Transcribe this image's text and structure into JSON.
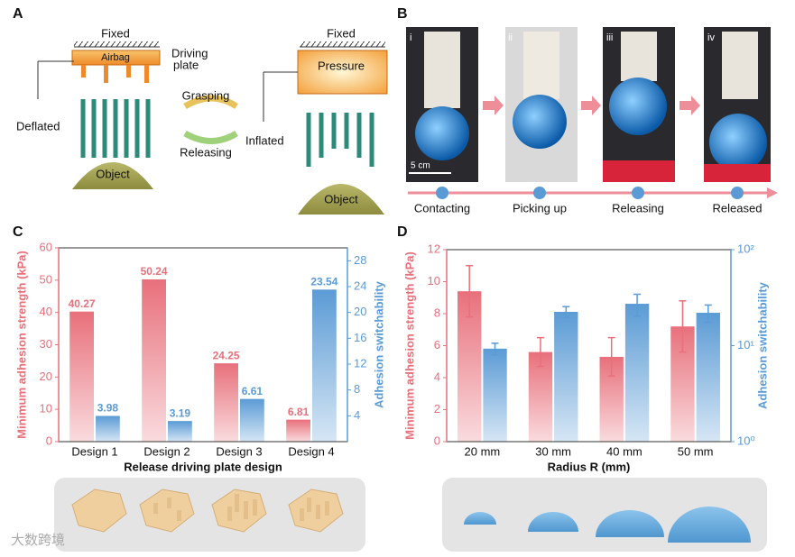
{
  "panel_labels": [
    "A",
    "B",
    "C",
    "D"
  ],
  "schematic": {
    "left_fixed": "Fixed",
    "airbag": "Airbag",
    "driving_plate": [
      "Driving",
      "plate"
    ],
    "deflated": "Deflated",
    "left_object": "Object",
    "grasping": "Grasping",
    "releasing": "Releasing",
    "right_fixed": "Fixed",
    "pressure": "Pressure",
    "inflated": "Inflated",
    "right_object": "Object"
  },
  "photos": {
    "frames": [
      "i",
      "ii",
      "iii",
      "iv"
    ],
    "scale_bar": "5 cm",
    "steps": [
      "Contacting",
      "Picking up",
      "Releasing",
      "Released"
    ]
  },
  "watermark": "大数跨境",
  "chart_data": [
    {
      "type": "bar",
      "categories": [
        "Design 1",
        "Design 2",
        "Design 3",
        "Design 4"
      ],
      "xlabel": "Release driving plate design",
      "series": [
        {
          "name": "Minimum adhesion strength (kPa)",
          "color": "#e8707b",
          "values": [
            40.27,
            50.24,
            24.25,
            6.81
          ]
        },
        {
          "name": "Adhesion switchability",
          "color": "#5b9bd5",
          "axis": "y2",
          "values": [
            3.98,
            3.19,
            6.61,
            23.54
          ]
        }
      ],
      "ylim": [
        0,
        60
      ],
      "yticks": [
        0,
        10,
        20,
        30,
        40,
        50,
        60
      ],
      "y2lim": [
        0,
        30
      ],
      "y2ticks": [
        4,
        8,
        12,
        16,
        20,
        24,
        28
      ],
      "data_labels": true
    },
    {
      "type": "bar",
      "categories": [
        "20 mm",
        "30 mm",
        "40 mm",
        "50 mm"
      ],
      "xlabel": "Radius R (mm)",
      "series": [
        {
          "name": "Minimum adhesion strength (kPa)",
          "color": "#e8707b",
          "values": [
            9.4,
            5.6,
            5.3,
            7.2
          ],
          "errors": [
            1.6,
            0.9,
            1.2,
            1.6
          ]
        },
        {
          "name": "Adhesion switchability",
          "color": "#5b9bd5",
          "axis": "y2",
          "values": [
            9.3,
            22.5,
            27.3,
            22
          ],
          "errors": [
            1.3,
            3,
            7,
            4.5
          ]
        }
      ],
      "ylim": [
        0,
        12
      ],
      "yticks": [
        0,
        2,
        4,
        6,
        8,
        10,
        12
      ],
      "y2lim": [
        1,
        100
      ],
      "y2scale": "log",
      "y2ticks": [
        {
          "value": 1,
          "label": "10⁰"
        },
        {
          "value": 10,
          "label": "10¹"
        },
        {
          "value": 100,
          "label": "10²"
        }
      ]
    }
  ]
}
